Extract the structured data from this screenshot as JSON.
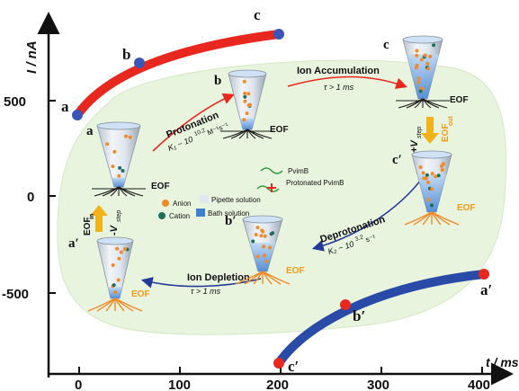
{
  "axes": {
    "y_label": "I / nA",
    "x_label": "t / ms",
    "y_ticks": [
      "500",
      "0",
      "-500"
    ],
    "x_ticks": [
      "0",
      "100",
      "200",
      "300",
      "400"
    ]
  },
  "colors": {
    "upper_curve": "#e8281e",
    "lower_curve": "#2a4aa8",
    "background_blob": "#e9f4de",
    "orange_arrow": "#f2b21a",
    "red_arrow": "#e8281e",
    "blue_arrow": "#243a96"
  },
  "curve_points": {
    "a": "a",
    "b": "b",
    "c": "c",
    "a_prime": "a′",
    "b_prime": "b′",
    "c_prime": "c′"
  },
  "states": {
    "a": "a",
    "b": "b",
    "c": "c",
    "a_prime": "a′",
    "b_prime": "b′",
    "c_prime": "c′"
  },
  "transitions": {
    "protonation": {
      "title": "Protonation",
      "rate": "K₁ ~ 10",
      "rate_exp": "10.2",
      "rate_unit": "M⁻¹s⁻¹"
    },
    "ion_accumulation": {
      "title": "Ion Accumulation",
      "time": "τ > 1 ms"
    },
    "deprotonation": {
      "title": "Deprotonation",
      "rate": "K₂ ~ 10",
      "rate_exp": "3.2",
      "rate_unit": "s⁻¹"
    },
    "ion_depletion": {
      "title": "Ion Depletion",
      "time": "τ > 1 ms"
    },
    "plus_v": "+V",
    "plus_v_sub": "step",
    "minus_v": "-V",
    "minus_v_sub": "step",
    "eof_out": "EOF",
    "eof_out_sub": "out",
    "eof_in": "EOF",
    "eof_in_sub": "in"
  },
  "eof_labels": {
    "a": "EOF",
    "b": "EOF",
    "c": "EOF",
    "a_prime": "EOF",
    "b_prime": "EOF",
    "c_prime": "EOF"
  },
  "legend": {
    "anion": "Anion",
    "cation": "Cation",
    "pipette": "Pipette solution",
    "bath": "Bath solution",
    "pvimb": "PvimB",
    "protonated": "Protonated PvimB"
  }
}
